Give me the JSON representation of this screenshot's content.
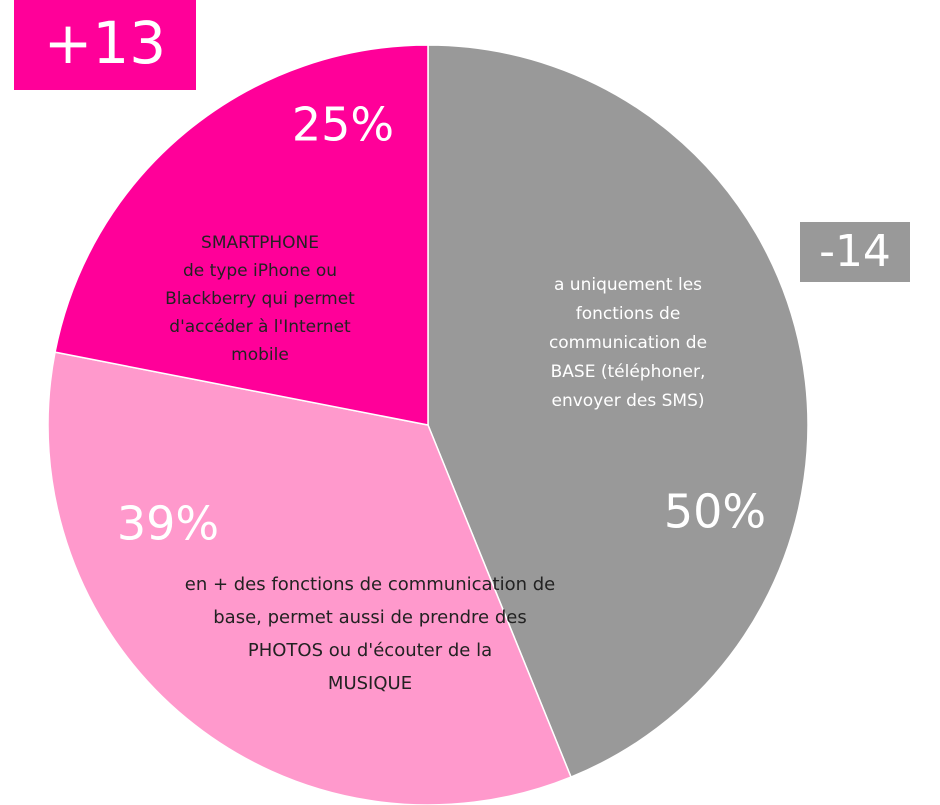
{
  "chart_data": {
    "type": "pie",
    "categories": [
      [
        "a uniquement les",
        "fonctions de",
        "communication de",
        "BASE (téléphoner,",
        "envoyer des SMS)"
      ],
      [
        "en + des fonctions de communication de",
        "base, permet aussi de prendre des",
        "PHOTOS ou d'écouter de la",
        "MUSIQUE"
      ],
      [
        "SMARTPHONE",
        "de type iPhone ou",
        "Blackberry qui permet",
        "d'accéder à l'Internet",
        "mobile"
      ]
    ],
    "values": [
      50,
      39,
      25
    ],
    "value_labels": [
      "50%",
      "39%",
      "25%"
    ],
    "colors": [
      "#999999",
      "#ff99cc",
      "#ff0099"
    ],
    "annotations": [
      {
        "text": "+13",
        "color": "#ff0099"
      },
      {
        "text": "-14",
        "color": "#999999"
      }
    ]
  }
}
